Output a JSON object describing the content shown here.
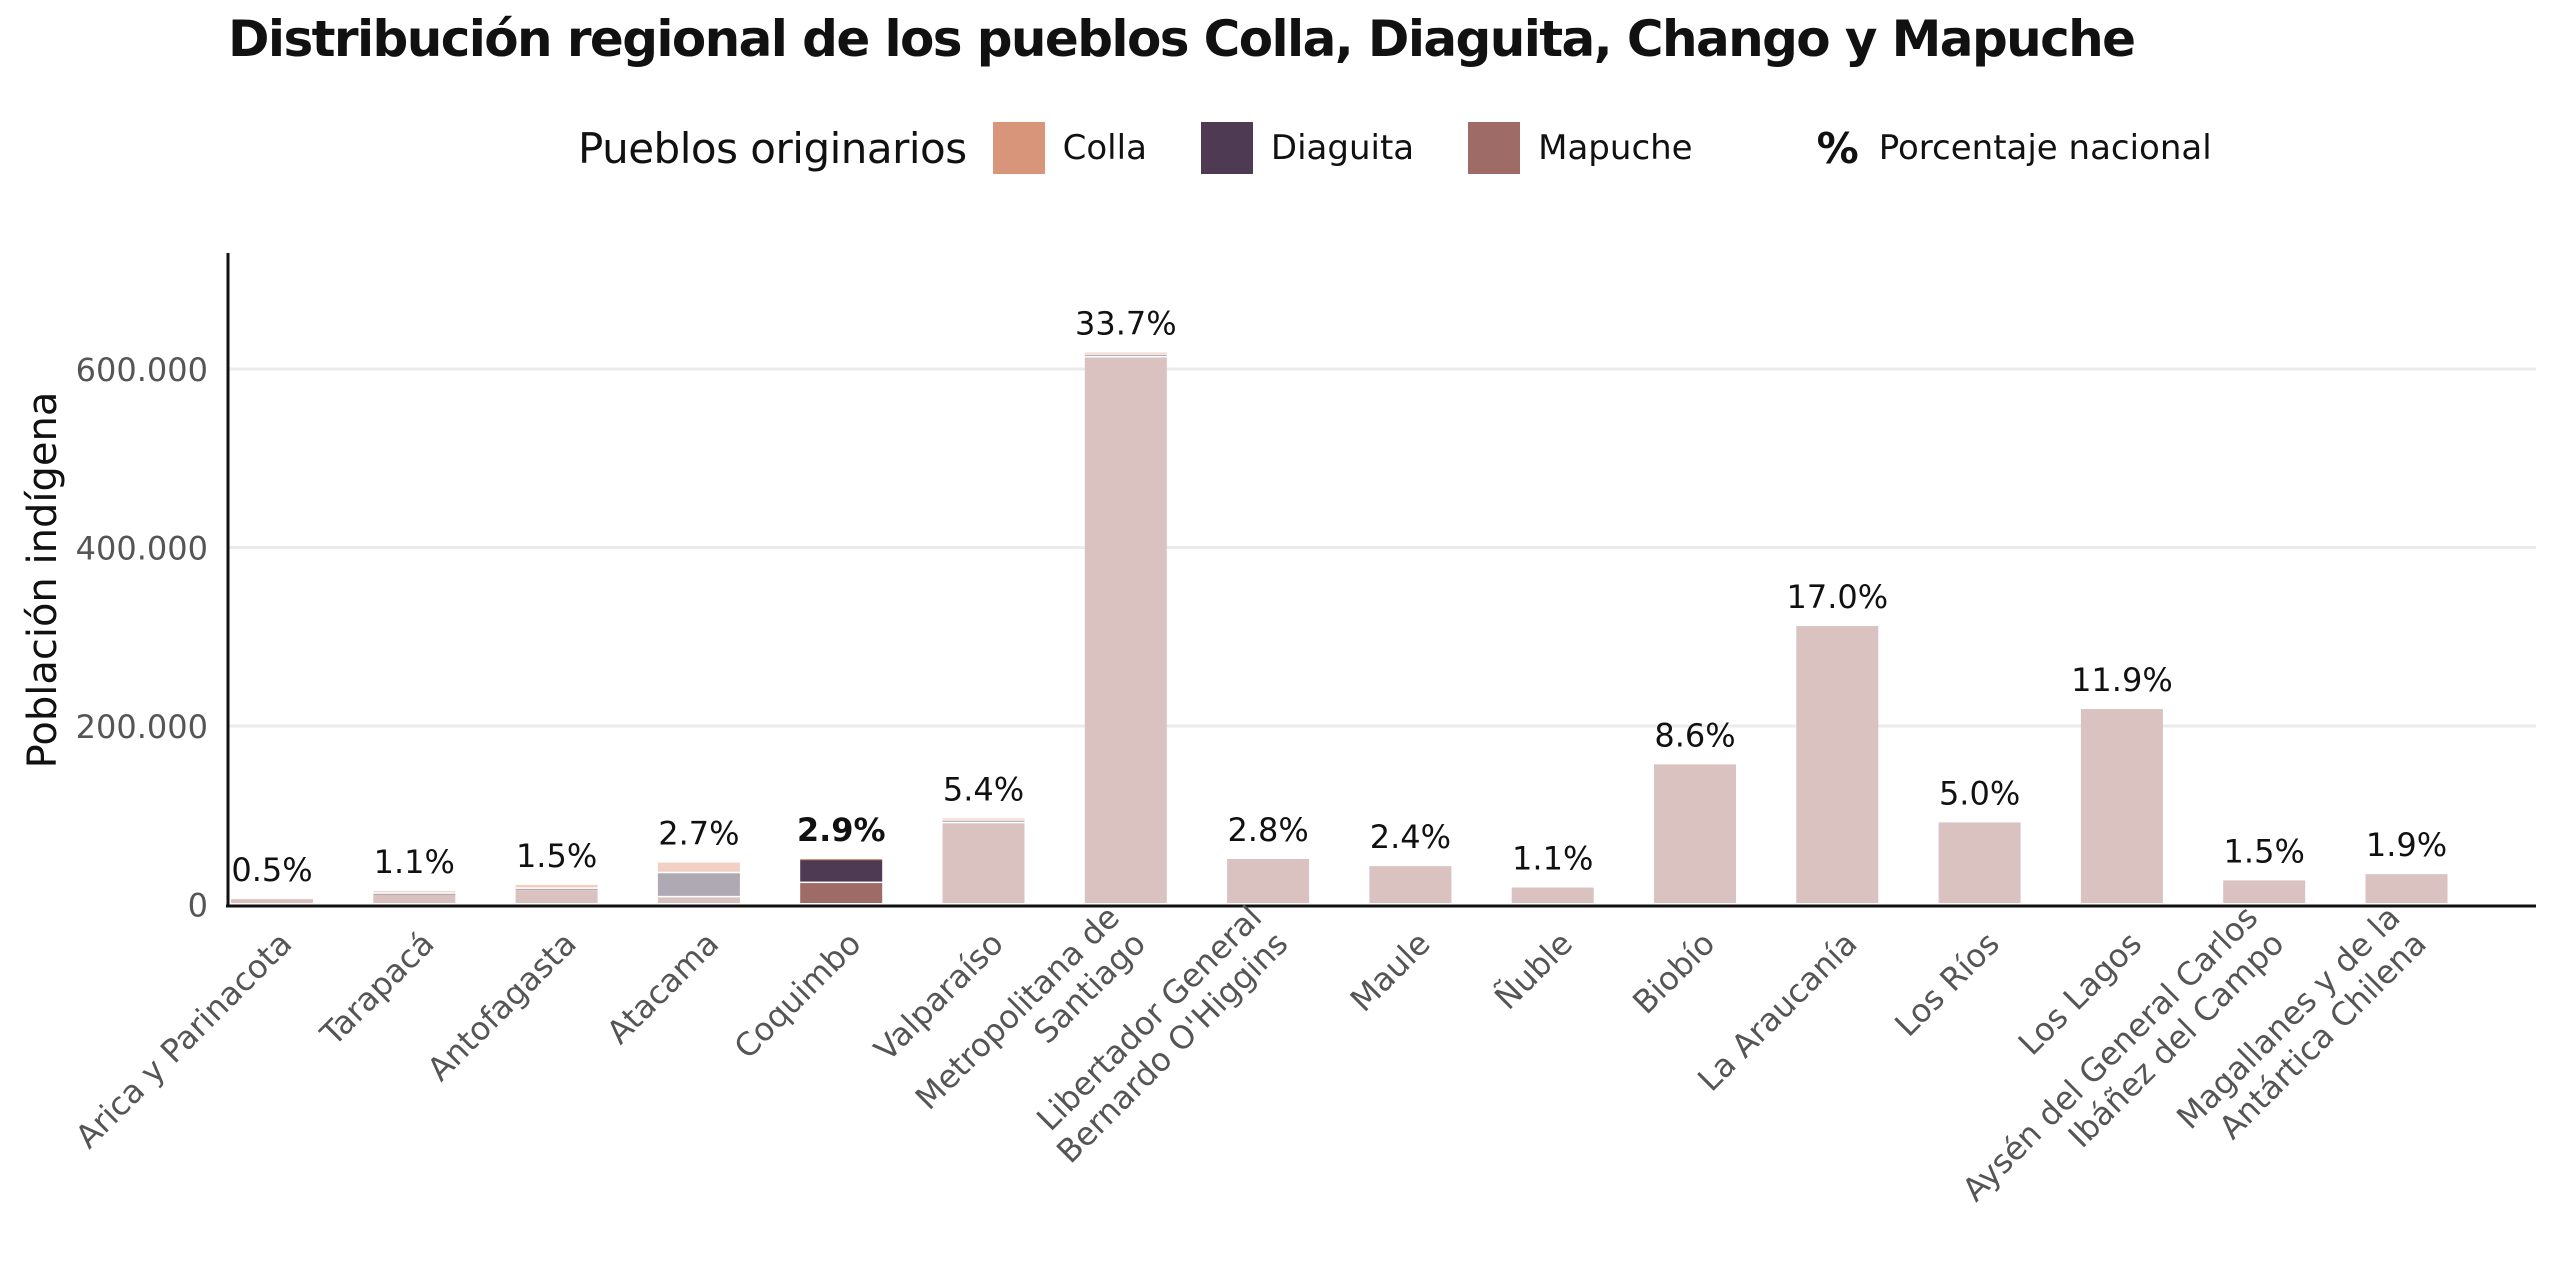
{
  "title": "Distribución regional de los pueblos Colla, Diaguita, Chango y Mapuche",
  "legend": {
    "title": "Pueblos originarios",
    "items": [
      {
        "label": "Colla",
        "color": "#d9957a"
      },
      {
        "label": "Diaguita",
        "color": "#4e3b53"
      },
      {
        "label": "Mapuche",
        "color": "#9e6b66"
      }
    ],
    "pct_symbol": "%",
    "pct_label": "Porcentaje nacional"
  },
  "chart_data": {
    "type": "bar",
    "stacked": true,
    "ylabel": "Población indígena",
    "xlabel": "",
    "ylim": [
      0,
      730000
    ],
    "yticks": [
      0,
      200000,
      400000,
      600000
    ],
    "ytick_labels": [
      "0",
      "200.000",
      "400.000",
      "600.000"
    ],
    "grid": true,
    "legend_position": "top",
    "highlighted_category": "Coquimbo",
    "categories": [
      [
        "Arica y Parinacota"
      ],
      [
        "Tarapacá"
      ],
      [
        "Antofagasta"
      ],
      [
        "Atacama"
      ],
      [
        "Coquimbo"
      ],
      [
        "Valparaíso"
      ],
      [
        "Metropolitana de",
        "Santiago"
      ],
      [
        "Libertador General",
        "Bernardo O'Higgins"
      ],
      [
        "Maule"
      ],
      [
        "Ñuble"
      ],
      [
        "Biobío"
      ],
      [
        "La Araucanía"
      ],
      [
        "Los Ríos"
      ],
      [
        "Los Lagos"
      ],
      [
        "Aysén del General Carlos",
        "Ibáñez del Campo"
      ],
      [
        "Magallanes y de la",
        "Antártica Chilena"
      ]
    ],
    "percent_labels": [
      "0.5%",
      "1.1%",
      "1.5%",
      "2.7%",
      "2.9%",
      "5.4%",
      "33.7%",
      "2.8%",
      "2.4%",
      "1.1%",
      "8.6%",
      "17.0%",
      "5.0%",
      "11.9%",
      "1.5%",
      "1.9%"
    ],
    "series": [
      {
        "name": "Mapuche",
        "values": [
          6000,
          11000,
          16000,
          8000,
          24000,
          91000,
          613000,
          51000,
          43000,
          19000,
          157000,
          312000,
          92000,
          219000,
          27000,
          34000
        ]
      },
      {
        "name": "Diaguita",
        "values": [
          0,
          1000,
          1500,
          27000,
          26000,
          3000,
          3000,
          0,
          0,
          0,
          0,
          0,
          0,
          0,
          0,
          0
        ]
      },
      {
        "name": "Colla",
        "values": [
          0,
          3000,
          4500,
          12000,
          1000,
          2500,
          2500,
          0,
          0,
          0,
          0,
          0,
          0,
          0,
          0,
          0
        ]
      }
    ]
  }
}
